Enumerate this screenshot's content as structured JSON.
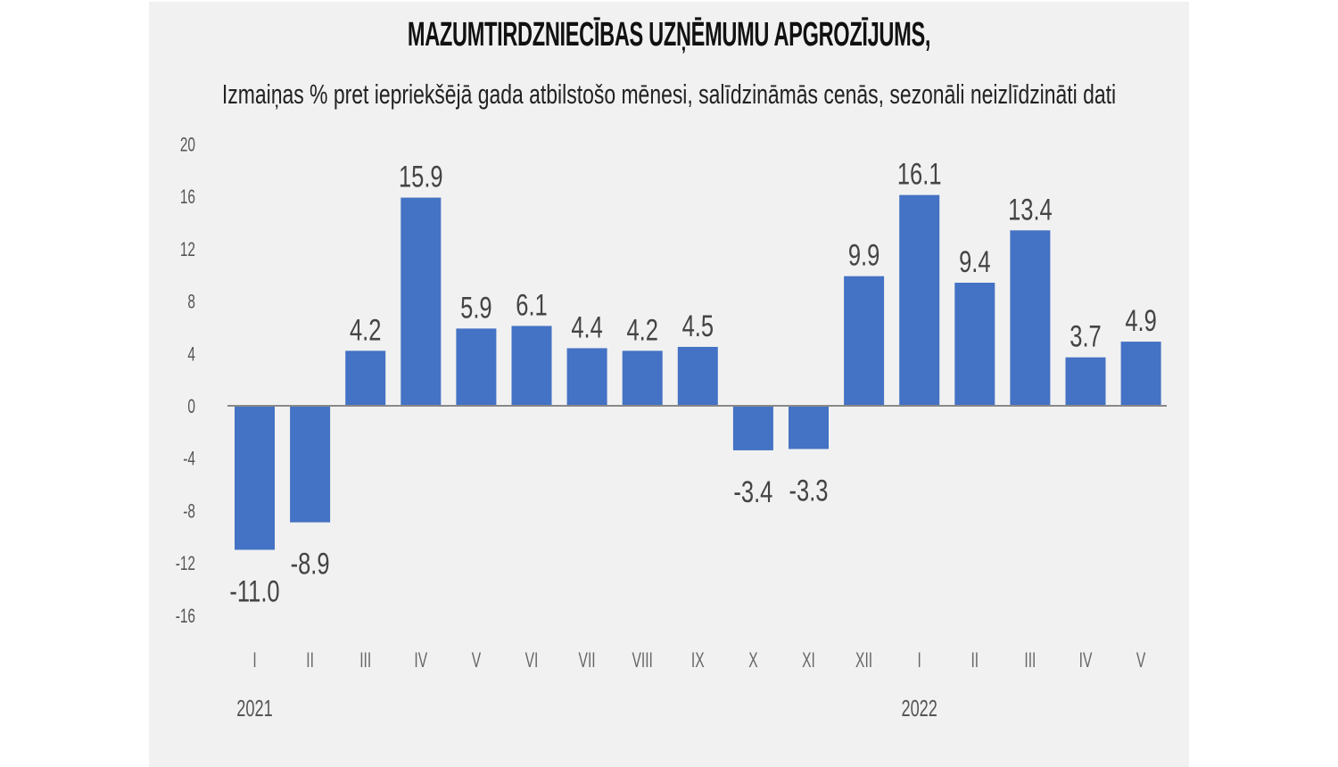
{
  "header": {
    "title": "MAZUMTIRDZNIECĪBAS UZŅĒMUMU APGROZĪJUMS,",
    "subtitle": "Izmaiņas % pret iepriekšējā gada atbilstošo mēnesi, salīdzināmās cenās, sezonāli neizlīdzināti dati"
  },
  "colors": {
    "bar": "#4472c4",
    "background": "#f1f1f1",
    "axis": "#888888"
  },
  "chart_data": {
    "type": "bar",
    "title": "MAZUMTIRDZNIECĪBAS UZŅĒMUMU APGROZĪJUMS,",
    "subtitle": "Izmaiņas % pret iepriekšējā gada atbilstošo mēnesi, salīdzināmās cenās, sezonāli neizlīdzināti dati",
    "xlabel": "",
    "ylabel": "",
    "categories": [
      "I",
      "II",
      "III",
      "IV",
      "V",
      "VI",
      "VII",
      "VIII",
      "IX",
      "X",
      "XI",
      "XII",
      "I",
      "II",
      "III",
      "IV",
      "V"
    ],
    "year_labels": [
      {
        "label": "2021",
        "index": 0
      },
      {
        "label": "2022",
        "index": 12
      }
    ],
    "series": [
      {
        "name": "Izmaiņas %",
        "values": [
          -11.0,
          -8.9,
          4.2,
          15.9,
          5.9,
          6.1,
          4.4,
          4.2,
          4.5,
          -3.4,
          -3.3,
          9.9,
          16.1,
          9.4,
          13.4,
          3.7,
          4.9
        ],
        "labels": [
          "-11.0",
          "-8.9",
          "4.2",
          "15.9",
          "5.9",
          "6.1",
          "4.4",
          "4.2",
          "4.5",
          "-3.4",
          "-3.3",
          "9.9",
          "16.1",
          "9.4",
          "13.4",
          "3.7",
          "4.9"
        ]
      }
    ],
    "yticks": [
      20,
      16,
      12,
      8,
      4,
      0,
      -4,
      -8,
      -12,
      -16
    ],
    "ylim": [
      -16,
      20
    ],
    "grid": false,
    "legend": "none",
    "data_labels": true
  }
}
